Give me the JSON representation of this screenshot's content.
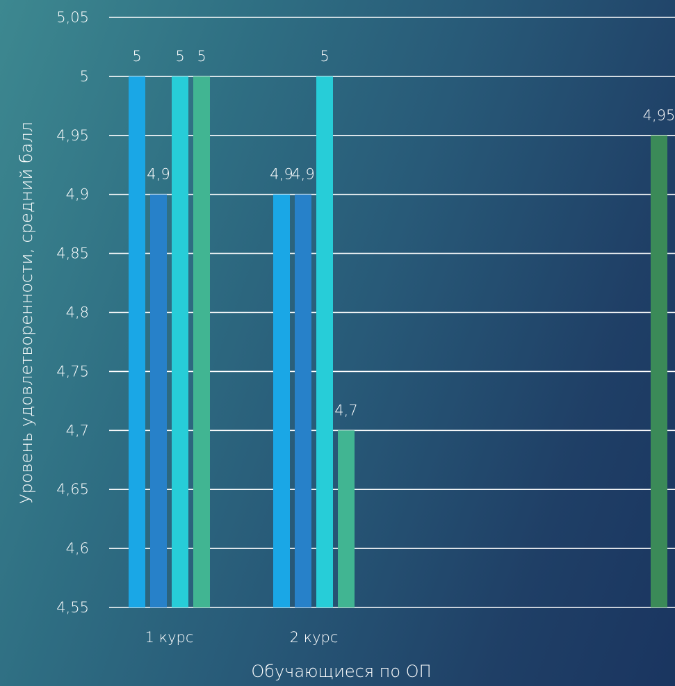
{
  "chart_data": {
    "type": "bar",
    "title": "",
    "xlabel": "Обучающиеся по ОП",
    "ylabel": "Уровень удовлетворенности, средний балл",
    "ylim": [
      4.55,
      5.05
    ],
    "y_ticks": [
      "4,55",
      "4,6",
      "4,65",
      "4,7",
      "4,75",
      "4,8",
      "4,85",
      "4,9",
      "4,95",
      "5",
      "5,05"
    ],
    "grid": true,
    "legend": "none",
    "categories": [
      "1 курс",
      "2 курс",
      ""
    ],
    "series": [
      {
        "color": "#1aa7e6",
        "values": [
          5,
          4.9,
          null
        ],
        "labels": [
          "5",
          "4,9",
          ""
        ]
      },
      {
        "color": "#2781c9",
        "values": [
          4.9,
          4.9,
          null
        ],
        "labels": [
          "4,9",
          "4,9",
          ""
        ]
      },
      {
        "color": "#27cdd8",
        "values": [
          5,
          5,
          null
        ],
        "labels": [
          "5",
          "5",
          ""
        ]
      },
      {
        "color": "#41b592",
        "values": [
          5,
          4.7,
          null
        ],
        "labels": [
          "5",
          "4,7",
          ""
        ]
      },
      {
        "color": "#3b8a58",
        "values": [
          null,
          null,
          4.95
        ],
        "labels": [
          "",
          "",
          "4,95"
        ]
      }
    ]
  }
}
